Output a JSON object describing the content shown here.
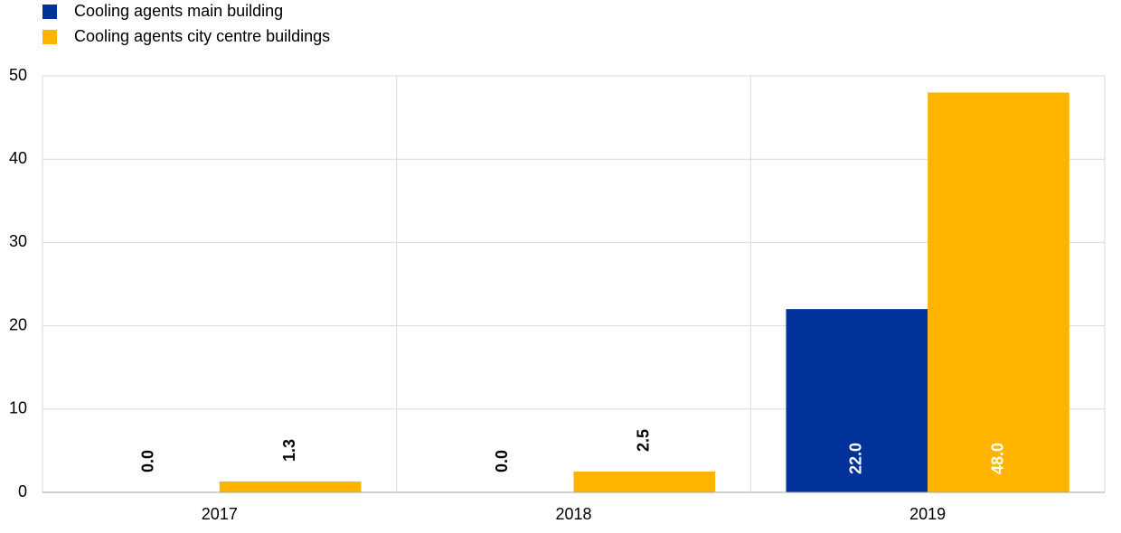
{
  "chart_data": {
    "type": "bar",
    "categories": [
      "2017",
      "2018",
      "2019"
    ],
    "series": [
      {
        "name": "Cooling agents main building",
        "color": "#003299",
        "values": [
          0,
          0,
          22
        ],
        "value_labels": [
          "0.0",
          "0.0",
          "22.0"
        ]
      },
      {
        "name": "Cooling agents city centre buildings",
        "color": "#ffb400",
        "values": [
          1.3,
          2.5,
          48
        ],
        "value_labels": [
          "1.3",
          "2.5",
          "48.0"
        ]
      }
    ],
    "ylim": [
      0,
      50
    ],
    "yticks": [
      0,
      10,
      20,
      30,
      40,
      50
    ],
    "grid": true,
    "legend": "top-left"
  }
}
